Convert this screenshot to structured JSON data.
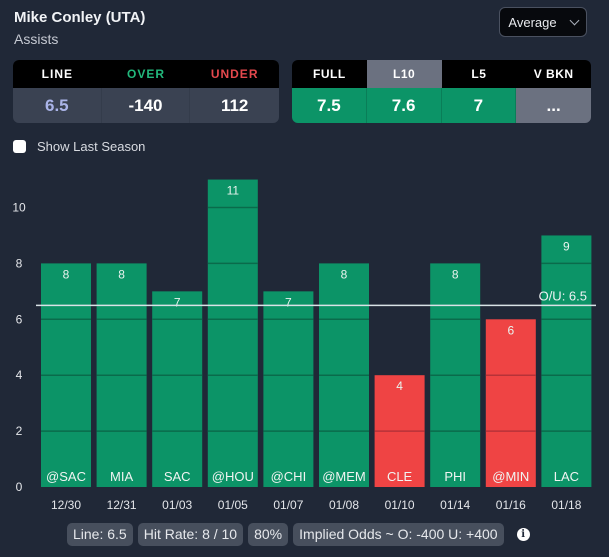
{
  "header": {
    "player": "Mike Conley (UTA)",
    "stat": "Assists",
    "dropdown": {
      "selected": "Average"
    }
  },
  "odds_table": {
    "headers": [
      "LINE",
      "OVER",
      "UNDER"
    ],
    "header_colors": [
      "#ffffff",
      "#22b87c",
      "#e5484d"
    ],
    "values": [
      "6.5",
      "-140",
      "112"
    ],
    "value_colors": [
      "#aab4e8",
      "#ffffff",
      "#ffffff"
    ]
  },
  "averages_table": {
    "headers": [
      "FULL",
      "L10",
      "L5",
      "V BKN"
    ],
    "selected": "L10",
    "values": [
      "7.5",
      "7.6",
      "7",
      "..."
    ]
  },
  "show_last_season": {
    "label": "Show Last Season",
    "checked": false
  },
  "chart_data": {
    "type": "bar",
    "categories": [
      "12/30",
      "12/31",
      "01/03",
      "01/05",
      "01/07",
      "01/08",
      "01/10",
      "01/14",
      "01/16",
      "01/18"
    ],
    "opponents": [
      "@SAC",
      "MIA",
      "SAC",
      "@HOU",
      "@CHI",
      "@MEM",
      "CLE",
      "PHI",
      "@MIN",
      "LAC"
    ],
    "values": [
      8,
      8,
      7,
      11,
      7,
      8,
      4,
      8,
      6,
      9
    ],
    "ylim": [
      0,
      11
    ],
    "yticks": [
      0,
      2,
      4,
      6,
      8,
      10
    ],
    "line": {
      "value": 6.5,
      "label": "O/U: 6.5"
    },
    "colors": {
      "over": "#0c9467",
      "under": "#ef4444",
      "line": "#d9e2e6"
    },
    "grid": true,
    "title": "",
    "xlabel": "",
    "ylabel": ""
  },
  "stats": {
    "line": "Line: 6.5",
    "hit_rate": "Hit Rate: 8 / 10",
    "percent": "80%",
    "implied_odds": "Implied Odds ~ O: -400 U: +400",
    "info_icon": "i"
  }
}
